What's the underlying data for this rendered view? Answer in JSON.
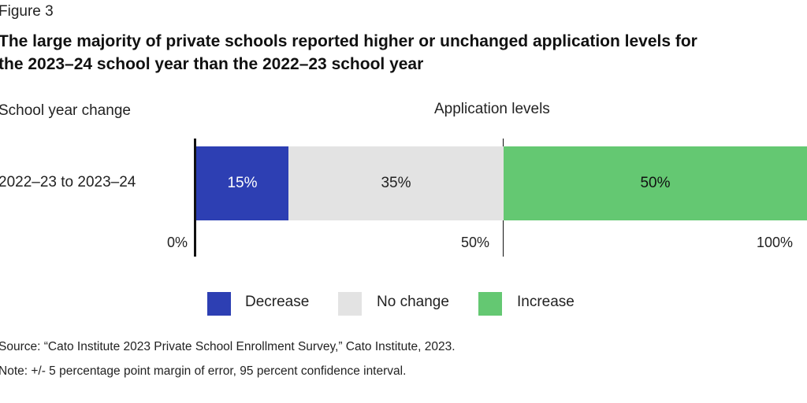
{
  "figure_label": "Figure 3",
  "title_line1": "The large majority of private schools reported higher or unchanged application levels for",
  "title_line2": "the 2023–24 school year than the 2022–23 school year",
  "y_header": "School year change",
  "x_title": "Application levels",
  "source": "Source: “Cato Institute 2023 Private School Enrollment Survey,” Cato Institute, 2023.",
  "note": "Note: +/- 5 percentage point margin of error, 95 percent confidence interval.",
  "chart_data": {
    "type": "bar",
    "orientation": "horizontal",
    "stacked": true,
    "categories": [
      "2022–23 to 2023–24"
    ],
    "series": [
      {
        "name": "Decrease",
        "values": [
          15
        ],
        "label": "15%",
        "color": "#2d3fb3",
        "label_color": "#ffffff"
      },
      {
        "name": "No change",
        "values": [
          35
        ],
        "label": "35%",
        "color": "#e3e3e3",
        "label_color": "#222222"
      },
      {
        "name": "Increase",
        "values": [
          50
        ],
        "label": "50%",
        "color": "#64c872",
        "label_color": "#111111"
      }
    ],
    "xlim": [
      0,
      100
    ],
    "xticks": [
      "0%",
      "50%",
      "100%"
    ],
    "xlabel": "Application levels",
    "ylabel": "School year change",
    "legend_position": "bottom"
  }
}
